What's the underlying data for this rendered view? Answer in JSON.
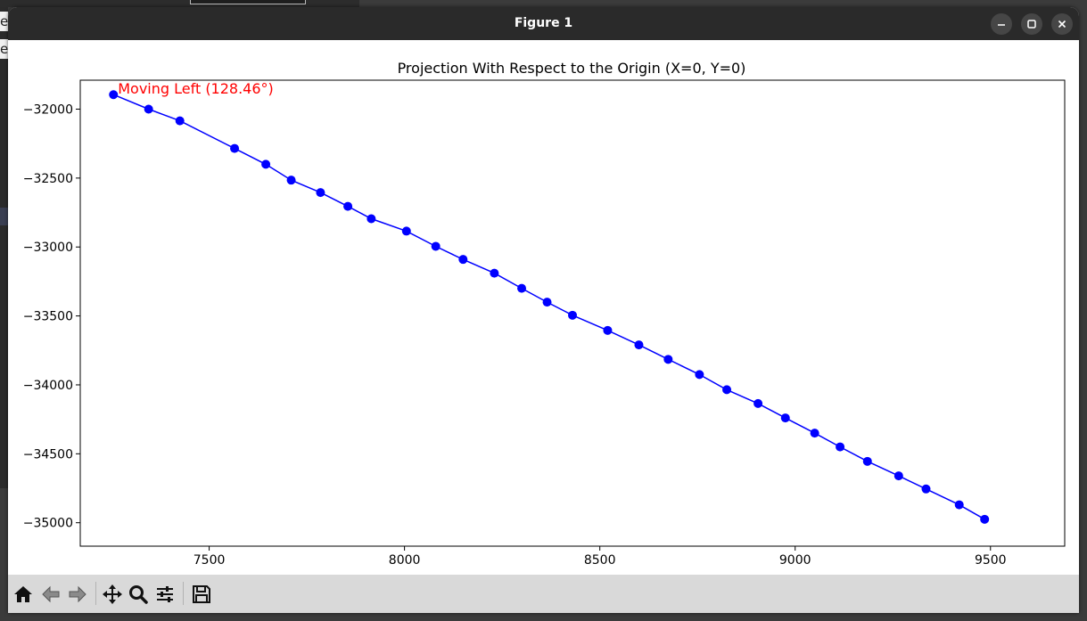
{
  "window": {
    "title": "Figure 1",
    "controls": {
      "minimize": "minimize",
      "maximize": "maximize",
      "close": "close"
    }
  },
  "background": {
    "fragment_1": "e",
    "fragment_2": "e"
  },
  "toolbar": {
    "items": [
      {
        "name": "home-icon"
      },
      {
        "name": "back-icon"
      },
      {
        "name": "forward-icon"
      },
      {
        "name": "pan-icon"
      },
      {
        "name": "zoom-icon"
      },
      {
        "name": "configure-subplots-icon"
      },
      {
        "name": "save-icon"
      }
    ]
  },
  "chart_data": {
    "type": "line",
    "title": "Projection With Respect to the Origin (X=0, Y=0)",
    "xlabel": "",
    "ylabel": "",
    "xlim": [
      7170,
      9690
    ],
    "ylim": [
      -35170,
      -31790
    ],
    "xticks": [
      7500,
      8000,
      8500,
      9000,
      9500
    ],
    "yticks": [
      -35000,
      -34500,
      -34000,
      -33500,
      -33000,
      -32500,
      -32000
    ],
    "grid": false,
    "line_color": "#0000ff",
    "marker": "circle",
    "series": [
      {
        "x": [
          7255,
          7345,
          7425,
          7565,
          7645,
          7710,
          7785,
          7855,
          7915,
          8005,
          8080,
          8150,
          8230,
          8300,
          8365,
          8430,
          8520,
          8600,
          8675,
          8755,
          8825,
          8905,
          8975,
          9050,
          9115,
          9185,
          9265,
          9335,
          9420,
          9485
        ],
        "y": [
          -31895,
          -32000,
          -32085,
          -32285,
          -32400,
          -32515,
          -32605,
          -32705,
          -32795,
          -32885,
          -32995,
          -33090,
          -33190,
          -33300,
          -33400,
          -33495,
          -33605,
          -33710,
          -33815,
          -33925,
          -34035,
          -34135,
          -34240,
          -34350,
          -34450,
          -34555,
          -34660,
          -34755,
          -34870,
          -34975
        ]
      }
    ],
    "annotation": {
      "text": "Moving Left (128.46°)",
      "x": 7255,
      "y": -31895,
      "color": "#ff0000"
    }
  }
}
